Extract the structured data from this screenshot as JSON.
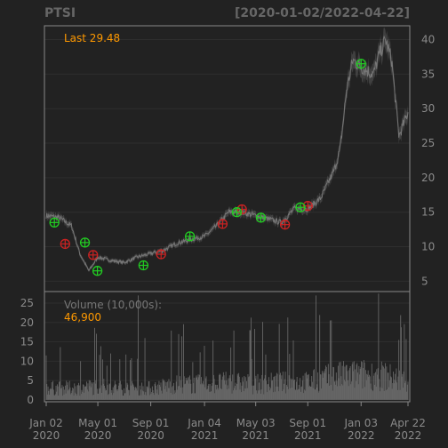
{
  "header": {
    "symbol": "PTSI",
    "date_range": "[2020-01-02/2022-04-22]"
  },
  "colors": {
    "background": "#222222",
    "frame": "#888888",
    "grid": "#2e2e2e",
    "price_line": "#777777",
    "volume_bar": "#666666",
    "accent_text": "#ff9900",
    "muted_text": "#8a8a8a",
    "buy_marker": "#22cc22",
    "sell_marker": "#cc2222"
  },
  "chart_data": [
    {
      "type": "line",
      "panel": "price",
      "annotation": "Last 29.48",
      "last_value": 29.48,
      "ylim": [
        3.5,
        42
      ],
      "y_ticks": [
        5,
        10,
        15,
        20,
        25,
        30,
        35,
        40
      ],
      "y_ticks_labels": [
        "5",
        "10",
        "15",
        "20",
        "25",
        "30",
        "35",
        "40"
      ],
      "grid": true,
      "x": [
        "2020-01-02",
        "2020-02-01",
        "2020-03-01",
        "2020-03-20",
        "2020-04-10",
        "2020-05-01",
        "2020-06-01",
        "2020-07-01",
        "2020-08-01",
        "2020-09-01",
        "2020-10-01",
        "2020-11-01",
        "2020-12-01",
        "2021-01-04",
        "2021-02-01",
        "2021-03-01",
        "2021-04-01",
        "2021-05-03",
        "2021-06-01",
        "2021-07-01",
        "2021-08-01",
        "2021-09-01",
        "2021-10-01",
        "2021-11-01",
        "2021-11-15",
        "2021-12-01",
        "2021-12-15",
        "2022-01-03",
        "2022-02-01",
        "2022-02-15",
        "2022-03-01",
        "2022-03-15",
        "2022-04-01",
        "2022-04-22"
      ],
      "close": [
        14.5,
        14.2,
        13.0,
        9.0,
        6.5,
        8.5,
        8.0,
        7.7,
        8.5,
        9.0,
        9.5,
        10.5,
        11.0,
        11.5,
        13.0,
        15.0,
        15.0,
        14.5,
        14.0,
        13.5,
        15.5,
        15.5,
        17.0,
        21.0,
        24.0,
        33.0,
        37.0,
        36.0,
        35.0,
        38.0,
        40.0,
        37.0,
        26.0,
        29.48
      ],
      "buy_signals": [
        {
          "date": "2020-01-21",
          "price": 13.5
        },
        {
          "date": "2020-04-01",
          "price": 10.6
        },
        {
          "date": "2020-04-30",
          "price": 6.5
        },
        {
          "date": "2020-08-15",
          "price": 7.3
        },
        {
          "date": "2020-12-01",
          "price": 11.5
        },
        {
          "date": "2021-03-20",
          "price": 15.0
        },
        {
          "date": "2021-05-15",
          "price": 14.2
        },
        {
          "date": "2021-08-15",
          "price": 15.7
        },
        {
          "date": "2022-01-03",
          "price": 36.5
        }
      ],
      "sell_signals": [
        {
          "date": "2020-02-15",
          "price": 10.4
        },
        {
          "date": "2020-04-20",
          "price": 8.8
        },
        {
          "date": "2020-09-25",
          "price": 8.9
        },
        {
          "date": "2021-02-15",
          "price": 13.3
        },
        {
          "date": "2021-04-01",
          "price": 15.4
        },
        {
          "date": "2021-07-10",
          "price": 13.2
        },
        {
          "date": "2021-09-01",
          "price": 15.9
        }
      ]
    },
    {
      "type": "bar",
      "panel": "volume",
      "label": "Volume (10,000s):",
      "last_value": "46,900",
      "unit": "10,000s",
      "ylim": [
        -0.5,
        28
      ],
      "y_ticks": [
        0,
        5,
        10,
        15,
        20,
        25
      ],
      "y_ticks_labels": [
        "0",
        "5",
        "10",
        "15",
        "20",
        "25"
      ],
      "x": [
        "2020-01-02",
        "2020-03-15",
        "2020-05-01",
        "2020-07-01",
        "2020-09-01",
        "2020-11-01",
        "2021-01-04",
        "2021-03-01",
        "2021-05-03",
        "2021-07-01",
        "2021-09-01",
        "2021-11-01",
        "2022-01-03",
        "2022-03-01",
        "2022-04-22"
      ],
      "values": [
        3,
        3,
        3.5,
        3,
        3,
        4,
        4,
        4.5,
        4,
        4.5,
        4.5,
        6,
        6.5,
        6,
        4.69
      ],
      "spikes": [
        {
          "date": "2020-08-03",
          "value": 27
        },
        {
          "date": "2021-04-20",
          "value": 18
        },
        {
          "date": "2021-09-20",
          "value": 27
        },
        {
          "date": "2022-04-01",
          "value": 15.5
        }
      ]
    }
  ],
  "x_axis": {
    "ticks": [
      "2020-01-02",
      "2020-05-01",
      "2020-09-01",
      "2021-01-04",
      "2021-05-03",
      "2021-09-01",
      "2022-01-03",
      "2022-04-22"
    ],
    "labels": [
      {
        "month": "Jan 02",
        "year": "2020"
      },
      {
        "month": "May 01",
        "year": "2020"
      },
      {
        "month": "Sep 01",
        "year": "2020"
      },
      {
        "month": "Jan 04",
        "year": "2021"
      },
      {
        "month": "May 03",
        "year": "2021"
      },
      {
        "month": "Sep 01",
        "year": "2021"
      },
      {
        "month": "Jan 03",
        "year": "2022"
      },
      {
        "month": "Apr 22",
        "year": "2022"
      }
    ]
  }
}
